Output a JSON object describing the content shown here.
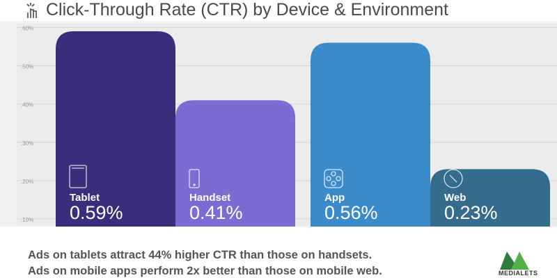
{
  "title": "Click-Through Rate (CTR) by Device & Environment",
  "colors": {
    "tablet": "#3b2d7b",
    "handset": "#7b6cd3",
    "app": "#3b8bcb",
    "web": "#356b8c"
  },
  "chart_data": {
    "type": "bar",
    "title": "Click-Through Rate (CTR) by Device & Environment",
    "categories": [
      "Tablet",
      "Handset",
      "App",
      "Web"
    ],
    "values": [
      0.59,
      0.41,
      0.56,
      0.23
    ],
    "value_labels": [
      "0.59%",
      "0.41%",
      "0.56%",
      "0.23%"
    ],
    "icons": [
      "tablet-icon",
      "handset-icon",
      "app-icon",
      "compass-icon"
    ],
    "yticks": [
      ".10%",
      ".20%",
      ".30%",
      ".40%",
      ".50%",
      ".60%"
    ],
    "ytick_values": [
      0.1,
      0.2,
      0.3,
      0.4,
      0.5,
      0.6
    ],
    "ylim": [
      0.08,
      0.61
    ],
    "grid": true,
    "xlabel": "",
    "ylabel": ""
  },
  "insights": [
    "Ads on tablets attract 44% higher CTR than those on handsets.",
    "Ads on mobile apps perform 2x better than those on mobile web."
  ],
  "logo": {
    "text": "MEDIALETS",
    "colors": [
      "#2e7d3a",
      "#56b04a"
    ]
  }
}
